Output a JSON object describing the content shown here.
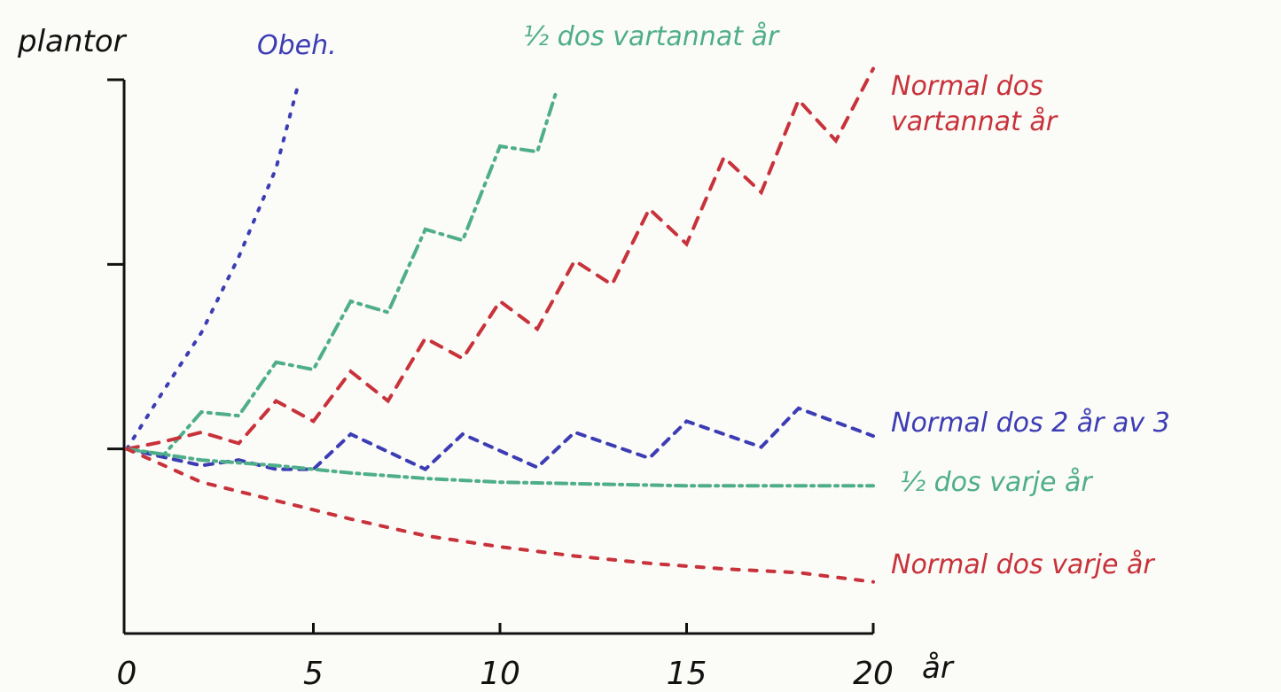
{
  "chart_data": {
    "type": "line",
    "ylabel": "plantor",
    "xlabel": "år",
    "xlim": [
      0,
      20
    ],
    "xticks": [
      0,
      5,
      10,
      15,
      20
    ],
    "ylim": [
      0,
      3
    ],
    "yticks": [
      1,
      2,
      3
    ],
    "series": [
      {
        "name": "Obeh.",
        "color": "#3c3cb4",
        "x": [
          0,
          1,
          2,
          3,
          4,
          4.6
        ],
        "values": [
          1.0,
          1.32,
          1.63,
          2.04,
          2.52,
          2.98
        ]
      },
      {
        "name": "½ dos vartannat år",
        "color": "#4fae8a",
        "x": [
          0,
          1,
          2,
          3,
          4,
          5,
          6,
          7,
          8,
          9,
          10,
          11,
          11.5
        ],
        "values": [
          1.0,
          0.97,
          1.2,
          1.18,
          1.47,
          1.43,
          1.8,
          1.74,
          2.19,
          2.13,
          2.64,
          2.61,
          2.93
        ]
      },
      {
        "name": "Normal dos vartannat år",
        "color": "#c8323a",
        "x": [
          0,
          1,
          2,
          3,
          4,
          5,
          6,
          7,
          8,
          9,
          10,
          11,
          12,
          13,
          14,
          15,
          16,
          17,
          18,
          19,
          20
        ],
        "values": [
          1.0,
          1.04,
          1.09,
          1.03,
          1.26,
          1.15,
          1.42,
          1.26,
          1.6,
          1.49,
          1.8,
          1.65,
          2.02,
          1.89,
          2.3,
          2.11,
          2.58,
          2.39,
          2.89,
          2.67,
          3.06
        ]
      },
      {
        "name": "Normal dos 2 år av 3",
        "color": "#3c3cb4",
        "x": [
          0,
          2,
          3,
          4,
          5,
          6,
          8,
          9,
          11,
          12,
          14,
          15,
          17,
          18,
          20
        ],
        "values": [
          1.0,
          0.91,
          0.94,
          0.89,
          0.89,
          1.08,
          0.89,
          1.08,
          0.9,
          1.09,
          0.95,
          1.15,
          1.01,
          1.22,
          1.07
        ]
      },
      {
        "name": "½ dos varje år",
        "color": "#4fae8a",
        "x": [
          0,
          2,
          4,
          6,
          8,
          10,
          15,
          20
        ],
        "values": [
          1.0,
          0.94,
          0.91,
          0.87,
          0.84,
          0.82,
          0.8,
          0.8
        ]
      },
      {
        "name": "Normal dos varje år",
        "color": "#c8323a",
        "x": [
          0,
          2,
          4,
          6,
          8,
          10,
          12,
          14,
          16,
          18,
          20
        ],
        "values": [
          1.0,
          0.82,
          0.72,
          0.62,
          0.53,
          0.47,
          0.42,
          0.38,
          0.35,
          0.33,
          0.28
        ]
      }
    ]
  }
}
